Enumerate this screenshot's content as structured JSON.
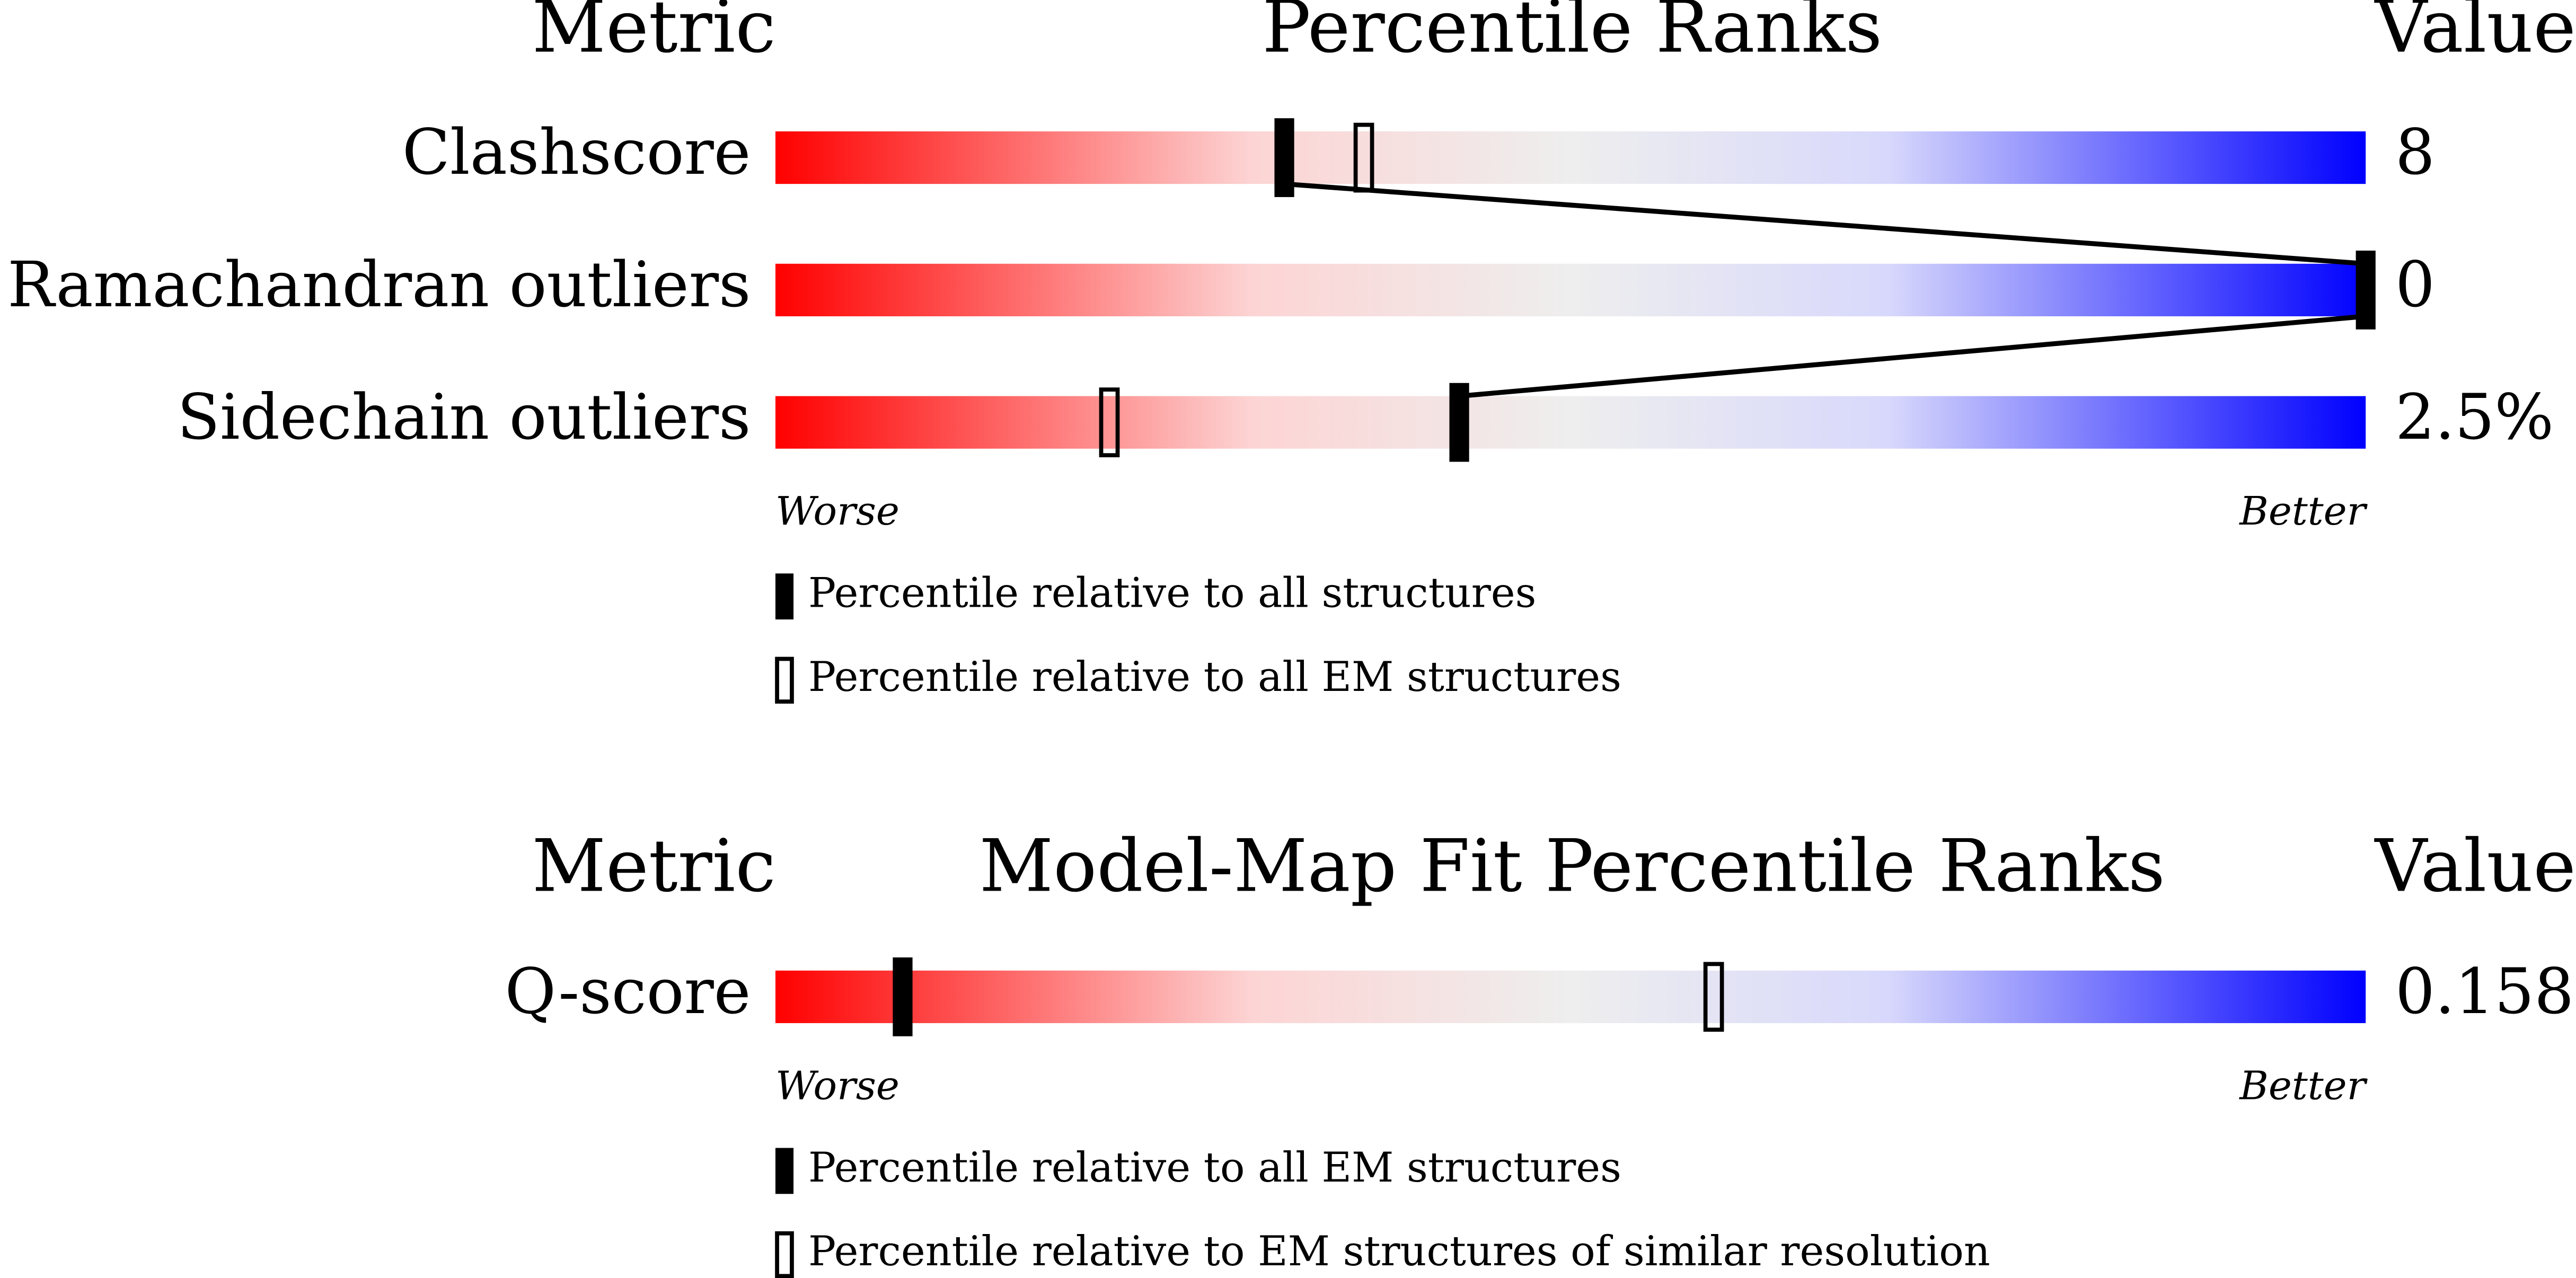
{
  "panels": [
    {
      "headers": {
        "metric": "Metric",
        "title": "Percentile Ranks",
        "value": "Value"
      },
      "xlim": [
        0,
        100
      ],
      "rows": [
        {
          "metric": "Clashscore",
          "all": 32,
          "em": 37,
          "value": "8"
        },
        {
          "metric": "Ramachandran outliers",
          "all": 100,
          "em": null,
          "value": "0"
        },
        {
          "metric": "Sidechain outliers",
          "all": 43,
          "em": 21,
          "value": "2.5%"
        }
      ],
      "scale": {
        "low": "Worse",
        "high": "Better"
      },
      "legend": {
        "all": "Percentile relative to all structures",
        "em": "Percentile relative to all EM structures"
      }
    },
    {
      "headers": {
        "metric": "Metric",
        "title": "Model-Map Fit Percentile Ranks",
        "value": "Value"
      },
      "xlim": [
        0,
        100
      ],
      "rows": [
        {
          "metric": "Q-score",
          "all": 8,
          "em": 59,
          "value": "0.158"
        }
      ],
      "scale": {
        "low": "Worse",
        "high": "Better"
      },
      "legend": {
        "all": "Percentile relative to all EM structures",
        "em": "Percentile relative to EM structures of similar resolution"
      }
    }
  ]
}
